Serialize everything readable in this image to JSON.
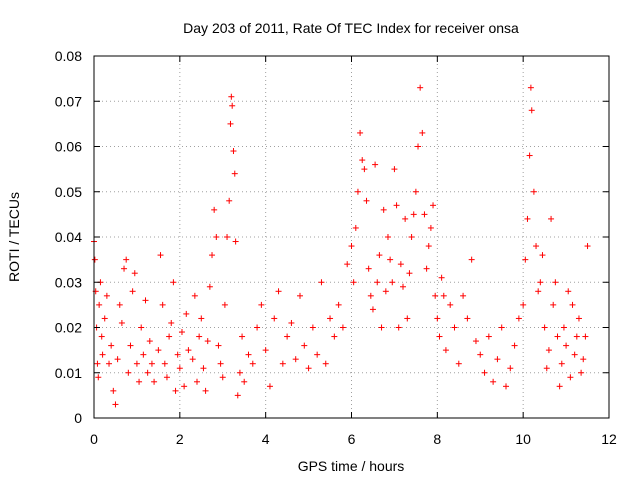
{
  "chart_data": {
    "type": "scatter",
    "title": "Day 203 of 2011, Rate Of TEC Index for receiver onsa",
    "xlabel": "GPS time / hours",
    "ylabel": "ROTI / TECUs",
    "xlim": [
      0,
      12
    ],
    "ylim": [
      0,
      0.08
    ],
    "xticks": [
      "0",
      "2",
      "4",
      "6",
      "8",
      "10",
      "12"
    ],
    "yticks": [
      "0",
      "0.01",
      "0.02",
      "0.03",
      "0.04",
      "0.05",
      "0.06",
      "0.07",
      "0.08"
    ],
    "grid": true,
    "marker": "+",
    "color": "#ff0000",
    "series": [
      {
        "name": "ROTI",
        "points": [
          [
            0.0,
            0.039
          ],
          [
            0.02,
            0.035
          ],
          [
            0.04,
            0.028
          ],
          [
            0.06,
            0.02
          ],
          [
            0.08,
            0.012
          ],
          [
            0.1,
            0.009
          ],
          [
            0.12,
            0.025
          ],
          [
            0.15,
            0.03
          ],
          [
            0.18,
            0.018
          ],
          [
            0.2,
            0.014
          ],
          [
            0.25,
            0.022
          ],
          [
            0.3,
            0.027
          ],
          [
            0.35,
            0.012
          ],
          [
            0.4,
            0.016
          ],
          [
            0.45,
            0.006
          ],
          [
            0.5,
            0.003
          ],
          [
            0.55,
            0.013
          ],
          [
            0.6,
            0.025
          ],
          [
            0.65,
            0.021
          ],
          [
            0.7,
            0.033
          ],
          [
            0.75,
            0.035
          ],
          [
            0.8,
            0.01
          ],
          [
            0.85,
            0.016
          ],
          [
            0.9,
            0.028
          ],
          [
            0.95,
            0.032
          ],
          [
            1.0,
            0.012
          ],
          [
            1.05,
            0.008
          ],
          [
            1.1,
            0.02
          ],
          [
            1.15,
            0.014
          ],
          [
            1.2,
            0.026
          ],
          [
            1.25,
            0.01
          ],
          [
            1.3,
            0.017
          ],
          [
            1.35,
            0.012
          ],
          [
            1.4,
            0.008
          ],
          [
            1.5,
            0.015
          ],
          [
            1.55,
            0.036
          ],
          [
            1.6,
            0.025
          ],
          [
            1.65,
            0.012
          ],
          [
            1.7,
            0.009
          ],
          [
            1.75,
            0.018
          ],
          [
            1.8,
            0.021
          ],
          [
            1.85,
            0.03
          ],
          [
            1.9,
            0.006
          ],
          [
            1.95,
            0.014
          ],
          [
            2.0,
            0.011
          ],
          [
            2.05,
            0.019
          ],
          [
            2.1,
            0.007
          ],
          [
            2.15,
            0.023
          ],
          [
            2.2,
            0.015
          ],
          [
            2.3,
            0.013
          ],
          [
            2.35,
            0.027
          ],
          [
            2.4,
            0.008
          ],
          [
            2.45,
            0.018
          ],
          [
            2.5,
            0.022
          ],
          [
            2.55,
            0.011
          ],
          [
            2.6,
            0.006
          ],
          [
            2.65,
            0.017
          ],
          [
            2.7,
            0.029
          ],
          [
            2.75,
            0.036
          ],
          [
            2.8,
            0.046
          ],
          [
            2.85,
            0.04
          ],
          [
            2.9,
            0.016
          ],
          [
            2.95,
            0.012
          ],
          [
            3.0,
            0.009
          ],
          [
            3.05,
            0.025
          ],
          [
            3.1,
            0.04
          ],
          [
            3.15,
            0.048
          ],
          [
            3.18,
            0.065
          ],
          [
            3.2,
            0.071
          ],
          [
            3.22,
            0.069
          ],
          [
            3.25,
            0.059
          ],
          [
            3.28,
            0.054
          ],
          [
            3.3,
            0.039
          ],
          [
            3.35,
            0.005
          ],
          [
            3.4,
            0.01
          ],
          [
            3.45,
            0.018
          ],
          [
            3.5,
            0.008
          ],
          [
            3.6,
            0.014
          ],
          [
            3.7,
            0.012
          ],
          [
            3.8,
            0.02
          ],
          [
            3.9,
            0.025
          ],
          [
            4.0,
            0.015
          ],
          [
            4.1,
            0.007
          ],
          [
            4.2,
            0.022
          ],
          [
            4.3,
            0.028
          ],
          [
            4.4,
            0.012
          ],
          [
            4.5,
            0.018
          ],
          [
            4.6,
            0.021
          ],
          [
            4.7,
            0.013
          ],
          [
            4.8,
            0.027
          ],
          [
            4.9,
            0.016
          ],
          [
            5.0,
            0.011
          ],
          [
            5.1,
            0.02
          ],
          [
            5.2,
            0.014
          ],
          [
            5.3,
            0.03
          ],
          [
            5.4,
            0.012
          ],
          [
            5.5,
            0.022
          ],
          [
            5.6,
            0.018
          ],
          [
            5.7,
            0.025
          ],
          [
            5.8,
            0.02
          ],
          [
            5.9,
            0.034
          ],
          [
            6.0,
            0.038
          ],
          [
            6.05,
            0.03
          ],
          [
            6.1,
            0.042
          ],
          [
            6.15,
            0.05
          ],
          [
            6.2,
            0.063
          ],
          [
            6.25,
            0.057
          ],
          [
            6.3,
            0.055
          ],
          [
            6.35,
            0.048
          ],
          [
            6.4,
            0.033
          ],
          [
            6.45,
            0.027
          ],
          [
            6.5,
            0.024
          ],
          [
            6.55,
            0.056
          ],
          [
            6.6,
            0.03
          ],
          [
            6.65,
            0.036
          ],
          [
            6.7,
            0.02
          ],
          [
            6.75,
            0.046
          ],
          [
            6.8,
            0.028
          ],
          [
            6.85,
            0.04
          ],
          [
            6.9,
            0.035
          ],
          [
            6.95,
            0.03
          ],
          [
            7.0,
            0.055
          ],
          [
            7.05,
            0.047
          ],
          [
            7.1,
            0.02
          ],
          [
            7.15,
            0.034
          ],
          [
            7.2,
            0.029
          ],
          [
            7.25,
            0.044
          ],
          [
            7.3,
            0.022
          ],
          [
            7.35,
            0.032
          ],
          [
            7.4,
            0.04
          ],
          [
            7.45,
            0.045
          ],
          [
            7.5,
            0.05
          ],
          [
            7.55,
            0.06
          ],
          [
            7.6,
            0.073
          ],
          [
            7.65,
            0.063
          ],
          [
            7.7,
            0.045
          ],
          [
            7.75,
            0.033
          ],
          [
            7.8,
            0.038
          ],
          [
            7.85,
            0.042
          ],
          [
            7.9,
            0.047
          ],
          [
            7.95,
            0.027
          ],
          [
            8.0,
            0.022
          ],
          [
            8.05,
            0.018
          ],
          [
            8.1,
            0.031
          ],
          [
            8.15,
            0.027
          ],
          [
            8.2,
            0.015
          ],
          [
            8.3,
            0.025
          ],
          [
            8.4,
            0.02
          ],
          [
            8.5,
            0.012
          ],
          [
            8.6,
            0.027
          ],
          [
            8.7,
            0.022
          ],
          [
            8.8,
            0.035
          ],
          [
            8.9,
            0.017
          ],
          [
            9.0,
            0.014
          ],
          [
            9.1,
            0.01
          ],
          [
            9.2,
            0.018
          ],
          [
            9.3,
            0.008
          ],
          [
            9.4,
            0.013
          ],
          [
            9.5,
            0.02
          ],
          [
            9.6,
            0.007
          ],
          [
            9.7,
            0.011
          ],
          [
            9.8,
            0.016
          ],
          [
            9.9,
            0.022
          ],
          [
            10.0,
            0.025
          ],
          [
            10.05,
            0.035
          ],
          [
            10.1,
            0.044
          ],
          [
            10.15,
            0.058
          ],
          [
            10.18,
            0.073
          ],
          [
            10.2,
            0.068
          ],
          [
            10.25,
            0.05
          ],
          [
            10.3,
            0.038
          ],
          [
            10.35,
            0.028
          ],
          [
            10.4,
            0.03
          ],
          [
            10.45,
            0.036
          ],
          [
            10.5,
            0.02
          ],
          [
            10.55,
            0.011
          ],
          [
            10.6,
            0.015
          ],
          [
            10.65,
            0.044
          ],
          [
            10.7,
            0.025
          ],
          [
            10.75,
            0.03
          ],
          [
            10.8,
            0.018
          ],
          [
            10.85,
            0.007
          ],
          [
            10.9,
            0.012
          ],
          [
            10.95,
            0.02
          ],
          [
            11.0,
            0.016
          ],
          [
            11.05,
            0.028
          ],
          [
            11.1,
            0.009
          ],
          [
            11.15,
            0.025
          ],
          [
            11.2,
            0.014
          ],
          [
            11.25,
            0.018
          ],
          [
            11.3,
            0.022
          ],
          [
            11.35,
            0.01
          ],
          [
            11.4,
            0.013
          ],
          [
            11.45,
            0.018
          ],
          [
            11.5,
            0.038
          ]
        ]
      }
    ]
  }
}
